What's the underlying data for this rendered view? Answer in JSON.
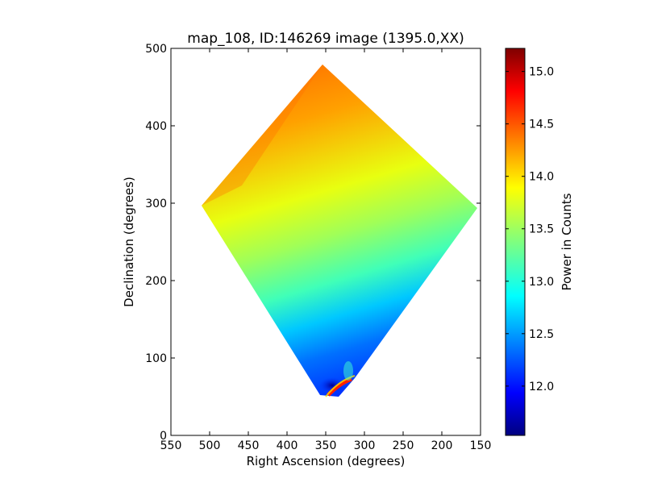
{
  "chart_data": {
    "type": "heatmap",
    "title": "map_108, ID:146269 image (1395.0,XX)",
    "xlabel": "Right Ascension (degrees)",
    "ylabel": "Declination (degrees)",
    "xlim": [
      550,
      150
    ],
    "ylim": [
      0,
      500
    ],
    "xticks": [
      550,
      500,
      450,
      400,
      350,
      300,
      250,
      200,
      150
    ],
    "yticks": [
      0,
      100,
      200,
      300,
      400,
      500
    ],
    "grid": false,
    "footprint_corners_radec": [
      [
        354,
        479
      ],
      [
        154,
        294
      ],
      [
        318,
        70
      ],
      [
        356,
        54
      ],
      [
        510,
        297
      ]
    ],
    "colormap": "jet",
    "colorbar": {
      "label": "Power in Counts",
      "range": [
        11.53,
        15.22
      ],
      "ticks": [
        "12.0",
        "12.5",
        "13.0",
        "13.5",
        "14.0",
        "14.5",
        "15.0"
      ]
    },
    "value_trend": [
      {
        "dec": 470,
        "value": 14.5
      },
      {
        "dec": 400,
        "value": 14.3
      },
      {
        "dec": 300,
        "value": 13.9
      },
      {
        "dec": 200,
        "value": 13.1
      },
      {
        "dec": 100,
        "value": 12.4
      },
      {
        "dec": 60,
        "value": 12.0
      }
    ],
    "hotspot": {
      "ra": 330,
      "dec": 62,
      "value": 15.0
    }
  }
}
